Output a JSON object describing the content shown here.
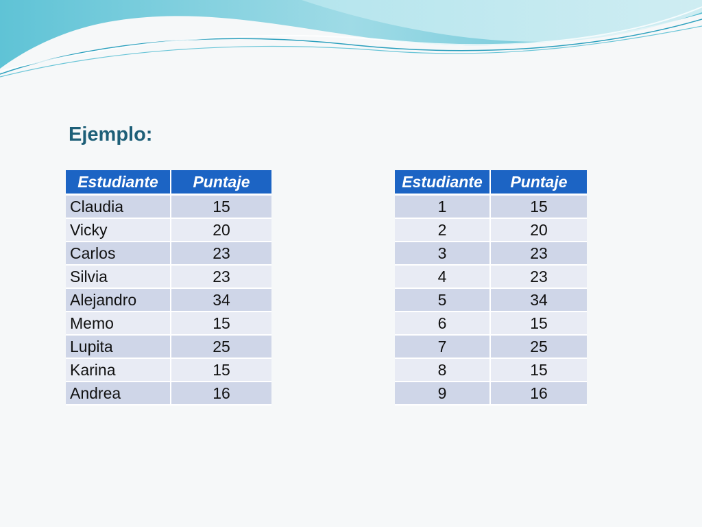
{
  "slide": {
    "title": "Ejemplo:",
    "colors": {
      "title": "#1d5f78",
      "header": "#1c64c4",
      "row_dark": "#cfd6e8",
      "row_light": "#e8ebf4"
    }
  },
  "table_names": {
    "headers": [
      "Estudiante",
      "Puntaje"
    ],
    "rows": [
      [
        "Claudia",
        "15"
      ],
      [
        "Vicky",
        "20"
      ],
      [
        "Carlos",
        "23"
      ],
      [
        "Silvia",
        "23"
      ],
      [
        "Alejandro",
        "34"
      ],
      [
        "Memo",
        "15"
      ],
      [
        "Lupita",
        "25"
      ],
      [
        "Karina",
        "15"
      ],
      [
        "Andrea",
        "16"
      ]
    ]
  },
  "table_numbers": {
    "headers": [
      "Estudiante",
      "Puntaje"
    ],
    "rows": [
      [
        "1",
        "15"
      ],
      [
        "2",
        "20"
      ],
      [
        "3",
        "23"
      ],
      [
        "4",
        "23"
      ],
      [
        "5",
        "34"
      ],
      [
        "6",
        "15"
      ],
      [
        "7",
        "25"
      ],
      [
        "8",
        "15"
      ],
      [
        "9",
        "16"
      ]
    ]
  }
}
